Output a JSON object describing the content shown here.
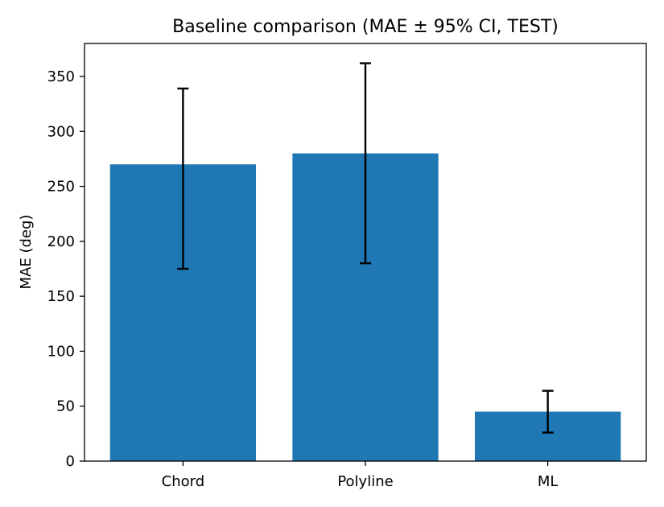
{
  "chart_data": {
    "type": "bar",
    "title": "Baseline comparison (MAE ± 95% CI, TEST)",
    "xlabel": "",
    "ylabel": "MAE (deg)",
    "categories": [
      "Chord",
      "Polyline",
      "ML"
    ],
    "series": [
      {
        "values": [
          270,
          280,
          45
        ],
        "ci_low": [
          175,
          180,
          26
        ],
        "ci_high": [
          339,
          362,
          64
        ],
        "color": "#1f77b4"
      }
    ],
    "ylim": [
      0,
      380
    ],
    "yticks": [
      0,
      50,
      100,
      150,
      200,
      250,
      300,
      350
    ],
    "grid": false,
    "legend": false
  }
}
